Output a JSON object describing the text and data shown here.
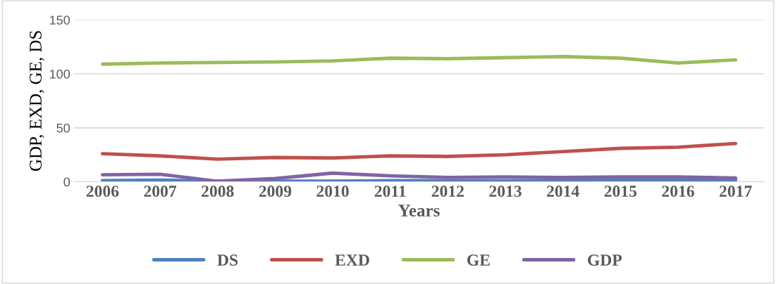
{
  "chart_data": {
    "type": "line",
    "xlabel": "Years",
    "ylabel": "GDP, EXD, GE, DS",
    "categories": [
      "2006",
      "2007",
      "2008",
      "2009",
      "2010",
      "2011",
      "2012",
      "2013",
      "2014",
      "2015",
      "2016",
      "2017"
    ],
    "series": [
      {
        "name": "DS",
        "color": "#4f81bd",
        "values": [
          1,
          1.5,
          0.5,
          0.5,
          0.5,
          1,
          1,
          1,
          1.5,
          1.5,
          1.5,
          1.5
        ]
      },
      {
        "name": "EXD",
        "color": "#c0504d",
        "values": [
          26,
          24,
          21,
          22.5,
          22,
          24,
          23.5,
          25,
          28,
          31,
          32,
          35.5
        ]
      },
      {
        "name": "GE",
        "color": "#9bbb59",
        "values": [
          109,
          110,
          110.5,
          111,
          112,
          114.5,
          114,
          115,
          116,
          114.5,
          110,
          113
        ]
      },
      {
        "name": "GDP",
        "color": "#8064a2",
        "values": [
          6.5,
          7,
          0.5,
          3,
          8,
          5.5,
          4,
          4.5,
          4,
          4.5,
          4.5,
          3.5
        ]
      }
    ],
    "ylim": [
      0,
      150
    ],
    "yticks": [
      0,
      50,
      100,
      150
    ],
    "grid": "y",
    "legend": "bottom",
    "marker": "none",
    "line_style": "solid"
  }
}
